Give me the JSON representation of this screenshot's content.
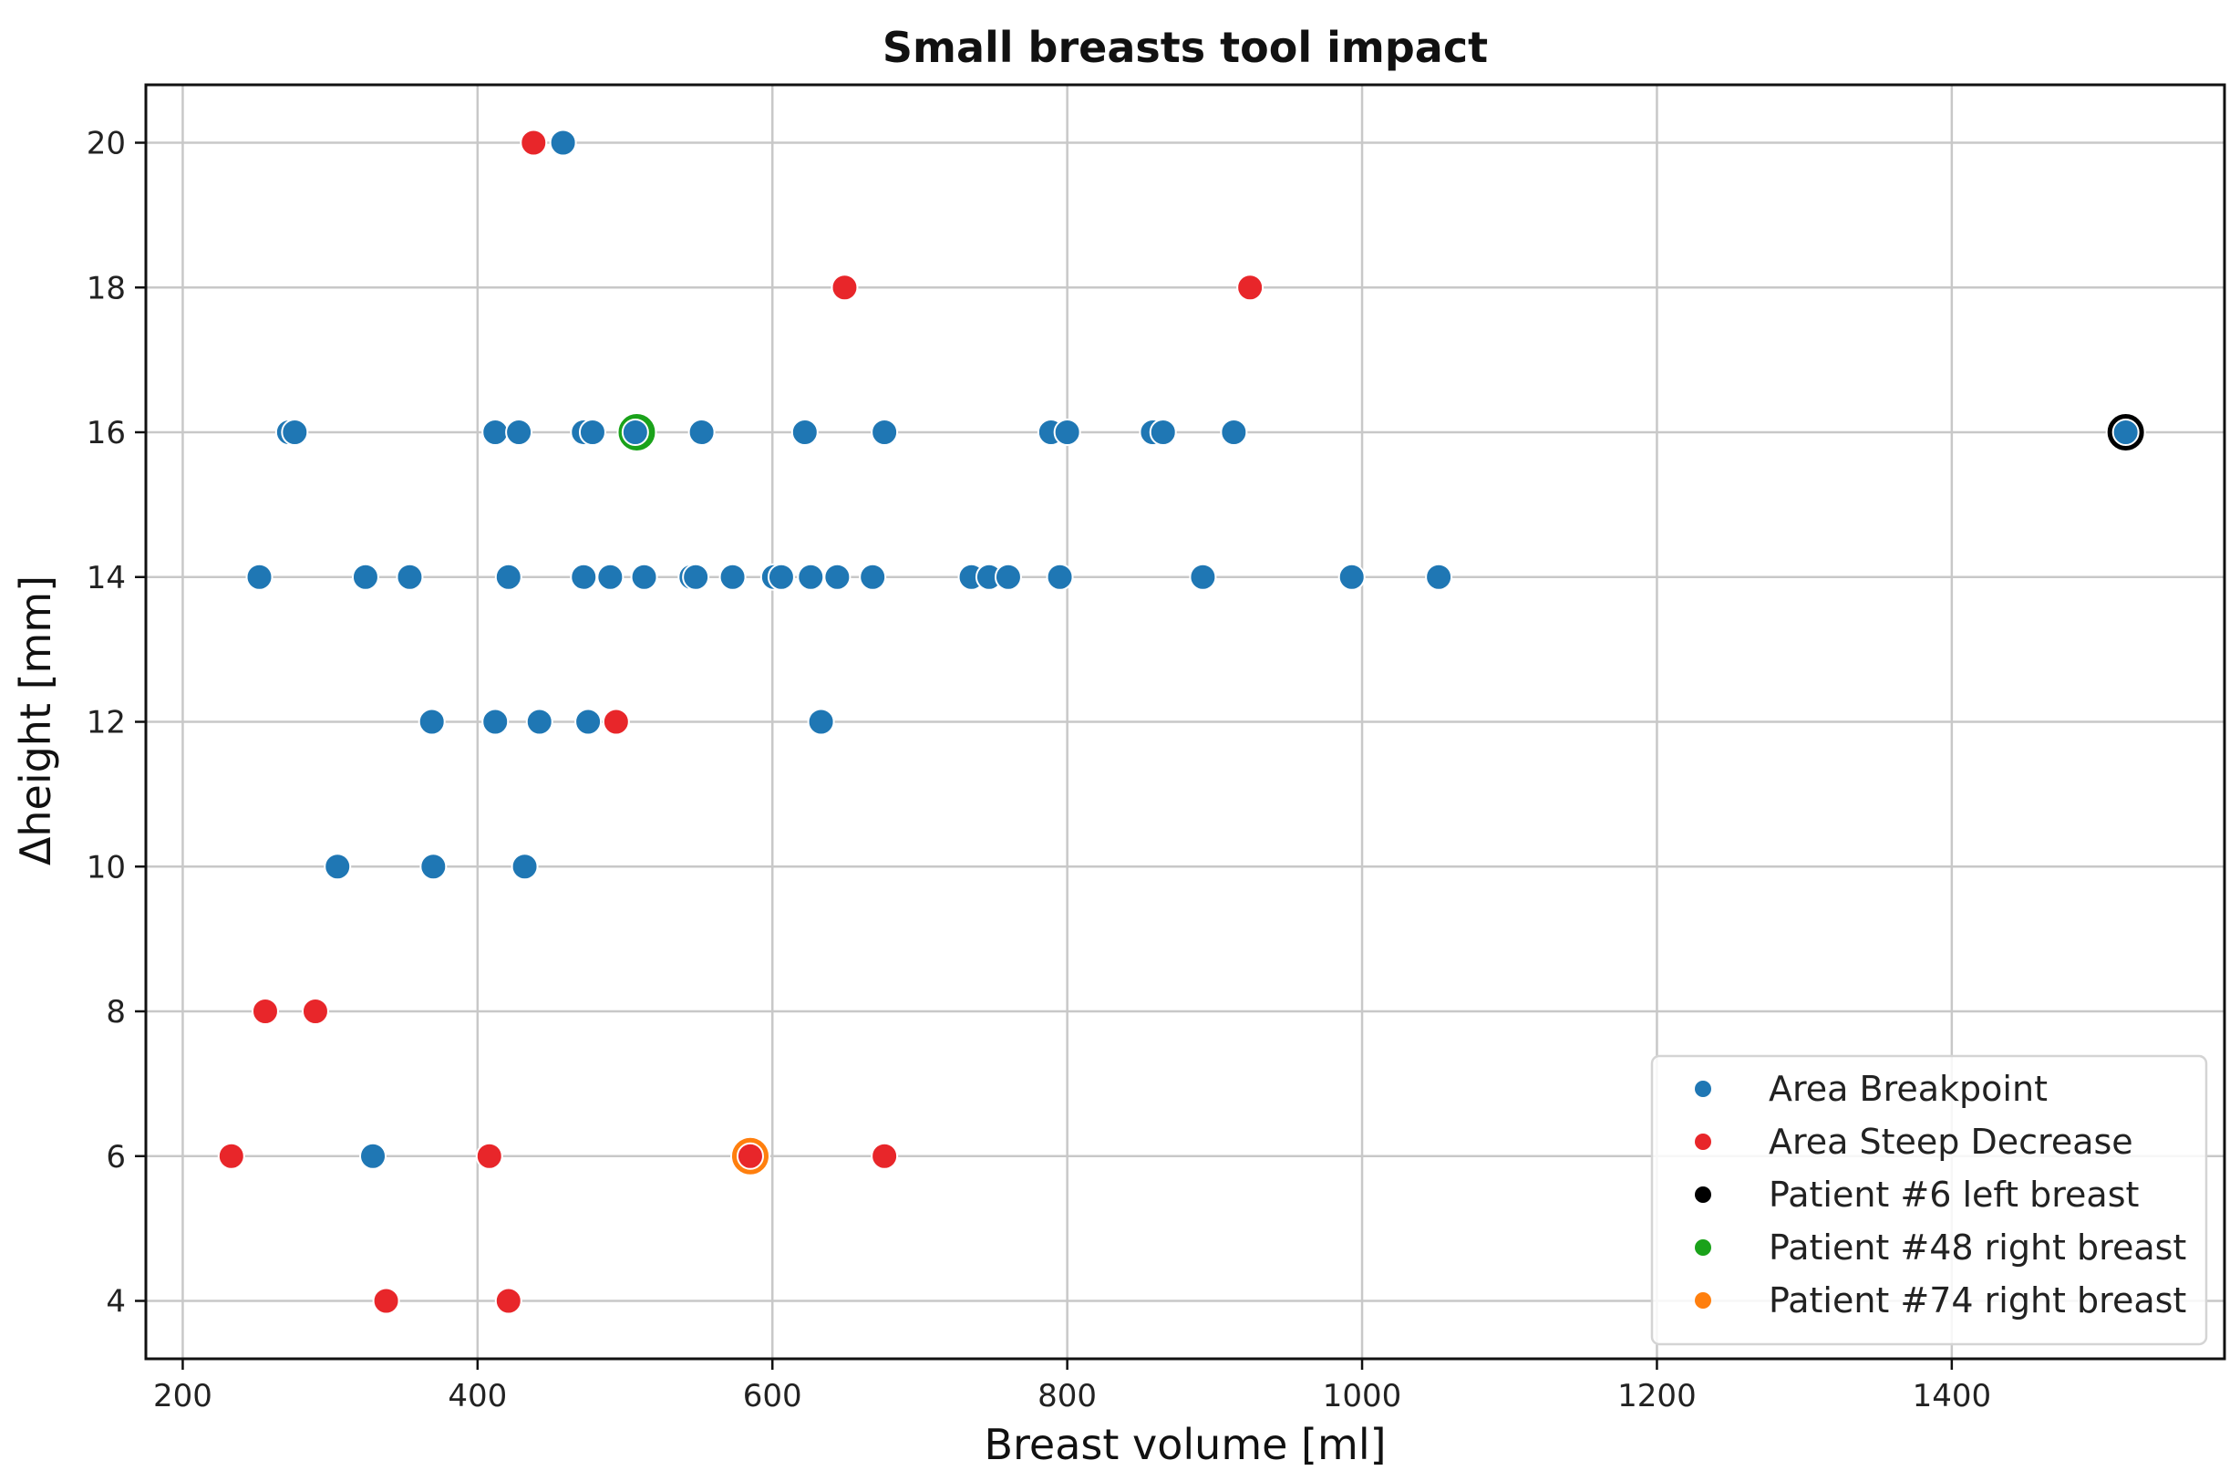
{
  "chart_data": {
    "type": "scatter",
    "title": "Small breasts tool impact",
    "xlabel": "Breast volume [ml]",
    "ylabel": "Δheight [mm]",
    "xlim": [
      175,
      1585
    ],
    "ylim": [
      3.2,
      20.8
    ],
    "xticks": [
      200,
      400,
      600,
      800,
      1000,
      1200,
      1400
    ],
    "yticks": [
      4,
      6,
      8,
      10,
      12,
      14,
      16,
      18,
      20
    ],
    "grid": true,
    "legend_position": "bottom-right",
    "series": [
      {
        "name": "Area Breakpoint",
        "color": "#1f77b4",
        "points": [
          [
            458,
            20
          ],
          [
            272,
            16
          ],
          [
            276,
            16
          ],
          [
            412,
            16
          ],
          [
            428,
            16
          ],
          [
            472,
            16
          ],
          [
            478,
            16
          ],
          [
            507,
            16
          ],
          [
            552,
            16
          ],
          [
            622,
            16
          ],
          [
            676,
            16
          ],
          [
            789,
            16
          ],
          [
            800,
            16
          ],
          [
            858,
            16
          ],
          [
            865,
            16
          ],
          [
            913,
            16
          ],
          [
            1518,
            16
          ],
          [
            252,
            14
          ],
          [
            324,
            14
          ],
          [
            354,
            14
          ],
          [
            421,
            14
          ],
          [
            472,
            14
          ],
          [
            490,
            14
          ],
          [
            513,
            14
          ],
          [
            545,
            14
          ],
          [
            548,
            14
          ],
          [
            573,
            14
          ],
          [
            601,
            14
          ],
          [
            606,
            14
          ],
          [
            626,
            14
          ],
          [
            644,
            14
          ],
          [
            668,
            14
          ],
          [
            735,
            14
          ],
          [
            747,
            14
          ],
          [
            760,
            14
          ],
          [
            795,
            14
          ],
          [
            892,
            14
          ],
          [
            993,
            14
          ],
          [
            1052,
            14
          ],
          [
            369,
            12
          ],
          [
            412,
            12
          ],
          [
            442,
            12
          ],
          [
            475,
            12
          ],
          [
            633,
            12
          ],
          [
            305,
            10
          ],
          [
            370,
            10
          ],
          [
            432,
            10
          ],
          [
            329,
            6
          ]
        ]
      },
      {
        "name": "Area Steep Decrease",
        "color": "#e8262a",
        "points": [
          [
            438,
            20
          ],
          [
            649,
            18
          ],
          [
            924,
            18
          ],
          [
            494,
            12
          ],
          [
            256,
            8
          ],
          [
            290,
            8
          ],
          [
            233,
            6
          ],
          [
            408,
            6
          ],
          [
            585,
            6
          ],
          [
            676,
            6
          ],
          [
            338,
            4
          ],
          [
            421,
            4
          ]
        ]
      },
      {
        "name": "Patient #6 left breast",
        "color": "#000000",
        "points": [
          [
            1518,
            16
          ]
        ]
      },
      {
        "name": "Patient #48 right breast",
        "color": "#1aa21a",
        "points": [
          [
            508,
            16
          ]
        ]
      },
      {
        "name": "Patient #74 right breast",
        "color": "#ff7f0e",
        "points": [
          [
            585,
            6
          ]
        ]
      }
    ]
  }
}
